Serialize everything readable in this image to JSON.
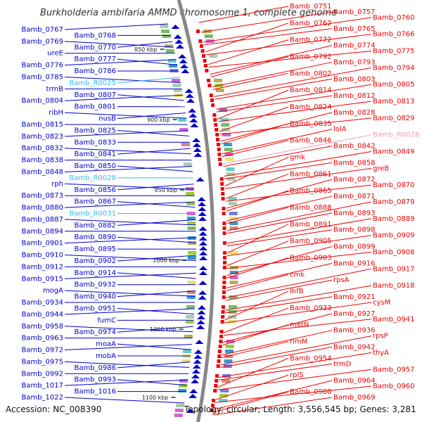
{
  "title": "Burkholderia ambifaria AMMD chromosome 1, complete genome",
  "footer": {
    "accession": "Accession: NC_008390",
    "summary": "Topology: circular; Length: 3,556,545 bp; Genes: 3,281"
  },
  "colors": {
    "minus_strand": "#0000cc",
    "plus_strand": "#ee0000",
    "rna": "#33bbee",
    "rna_plus": "#ee99bb",
    "backbone": "#888888",
    "tick_marker": "#228822"
  },
  "scale_labels": [
    "850 kbp",
    "900 kbp",
    "950 kbp",
    "1000 kbp",
    "1050 kbp",
    "1100 kbp"
  ],
  "left_labels": [
    "Bamb_0767",
    "Bamb_0768",
    "Bamb_0769",
    "Bamb_0770",
    "ureE",
    "Bamb_0777",
    "Bamb_0776",
    "Bamb_0786",
    "Bamb_0785",
    "Bamb_R0025",
    "trmB",
    "Bamb_0807",
    "Bamb_0804",
    "Bamb_0801",
    "ribH",
    "nusB",
    "Bamb_0815",
    "Bamb_0825",
    "Bamb_0823",
    "Bamb_0833",
    "Bamb_0832",
    "Bamb_0841",
    "Bamb_0838",
    "Bamb_0850",
    "Bamb_0848",
    "Bamb_R0028",
    "rph",
    "Bamb_0856",
    "Bamb_0873",
    "Bamb_0867",
    "Bamb_0880",
    "Bamb_R0031",
    "Bamb_0887",
    "Bamb_0882",
    "Bamb_0894",
    "Bamb_0890",
    "Bamb_0901",
    "Bamb_0895",
    "Bamb_0910",
    "Bamb_0902",
    "Bamb_0912",
    "Bamb_0914",
    "Bamb_0915",
    "Bamb_0932",
    "mogA",
    "Bamb_0940",
    "Bamb_0934",
    "Bamb_0951",
    "Bamb_0944",
    "fumC",
    "Bamb_0958",
    "Bamb_0974",
    "Bamb_0963",
    "moaA",
    "Bamb_0972",
    "mobA",
    "Bamb_0975",
    "Bamb_0986",
    "Bamb_0992",
    "Bamb_0993",
    "Bamb_1017",
    "Bamb_1016",
    "Bamb_1022"
  ],
  "right_labels": [
    "Bamb_0751",
    "Bamb_0757",
    "Bamb_0760",
    "Bamb_0762",
    "Bamb_0765",
    "Bamb_0766",
    "Bamb_0772",
    "Bamb_0774",
    "Bamb_0775",
    "Bamb_0792",
    "Bamb_0793",
    "Bamb_0794",
    "Bamb_0802",
    "Bamb_0803",
    "Bamb_0805",
    "Bamb_0814",
    "Bamb_0812",
    "Bamb_0813",
    "Bamb_0824",
    "Bamb_0828",
    "Bamb_0829",
    "Bamb_0835",
    "lolA",
    "Bamb_R0026",
    "Bamb_0846",
    "Bamb_0842",
    "Bamb_0849",
    "gmk",
    "Bamb_0858",
    "greB",
    "Bamb_0861",
    "Bamb_0872",
    "Bamb_0870",
    "Bamb_0865",
    "Bamb_0871",
    "Bamb_0879",
    "Bamb_0888",
    "Bamb_0893",
    "Bamb_0889",
    "Bamb_0891",
    "Bamb_0898",
    "Bamb_0909",
    "Bamb_0905",
    "Bamb_0899",
    "Bamb_0908",
    "Bamb_0903",
    "Bamb_0916",
    "Bamb_0917",
    "cmk",
    "rpsA",
    "Bamb_0918",
    "ihfB",
    "Bamb_0921",
    "cysM",
    "Bamb_0933",
    "Bamb_0927",
    "Bamb_0941",
    "metN",
    "Bamb_0936",
    "rpsP",
    "rimM",
    "Bamb_0942",
    "thyA",
    "Bamb_0954",
    "trmD",
    "Bamb_0957",
    "rplS",
    "Bamb_0964",
    "Bamb_0960",
    "Bamb_0980",
    "Bamb_0969"
  ]
}
